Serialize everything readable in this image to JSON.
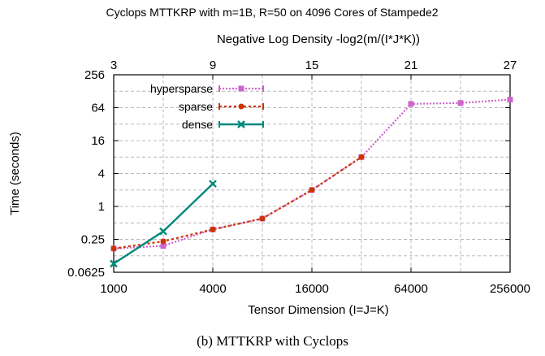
{
  "chart_data": {
    "type": "line",
    "title": "Cyclops MTTKRP with m=1B, R=50 on 4096 Cores of Stampede2",
    "xlabel": "Tensor Dimension (I=J=K)",
    "x2label": "Negative Log Density -log2(m/(I*J*K))",
    "ylabel": "Time (seconds)",
    "x_scale": "log2",
    "y_scale": "log2",
    "xlim": [
      1000,
      256000
    ],
    "ylim": [
      0.0625,
      256
    ],
    "x_ticks": [
      1000,
      4000,
      16000,
      64000,
      256000
    ],
    "x_tick_labels": [
      "1000",
      "4000",
      "16000",
      "64000",
      "256000"
    ],
    "x2_ticks": [
      3,
      9,
      15,
      21,
      27
    ],
    "x2_tick_labels": [
      "3",
      "9",
      "15",
      "21",
      "27"
    ],
    "y_ticks": [
      0.0625,
      0.25,
      1,
      4,
      16,
      64,
      256
    ],
    "y_tick_labels": [
      "0.0625",
      "0.25",
      "1",
      "4",
      "16",
      "64",
      "256"
    ],
    "grid": true,
    "legend_position": "top-left",
    "series": [
      {
        "name": "hypersparse",
        "color": "#cc66cc",
        "marker": "square",
        "line": "dotted",
        "x": [
          1000,
          2000,
          4000,
          8000,
          16000,
          32000,
          64000,
          128000,
          256000
        ],
        "y": [
          0.17,
          0.19,
          0.38,
          0.6,
          2.0,
          8.0,
          75,
          78,
          90
        ]
      },
      {
        "name": "sparse",
        "color": "#cc3300",
        "marker": "circle",
        "line": "dotted",
        "x": [
          1000,
          2000,
          4000,
          8000,
          16000,
          32000
        ],
        "y": [
          0.17,
          0.23,
          0.38,
          0.6,
          2.0,
          8.0
        ]
      },
      {
        "name": "dense",
        "color": "#00897b",
        "marker": "x",
        "line": "solid",
        "x": [
          1000,
          2000,
          4000
        ],
        "y": [
          0.09,
          0.35,
          2.6
        ]
      }
    ]
  },
  "caption": "(b)  MTTKRP with Cyclops"
}
